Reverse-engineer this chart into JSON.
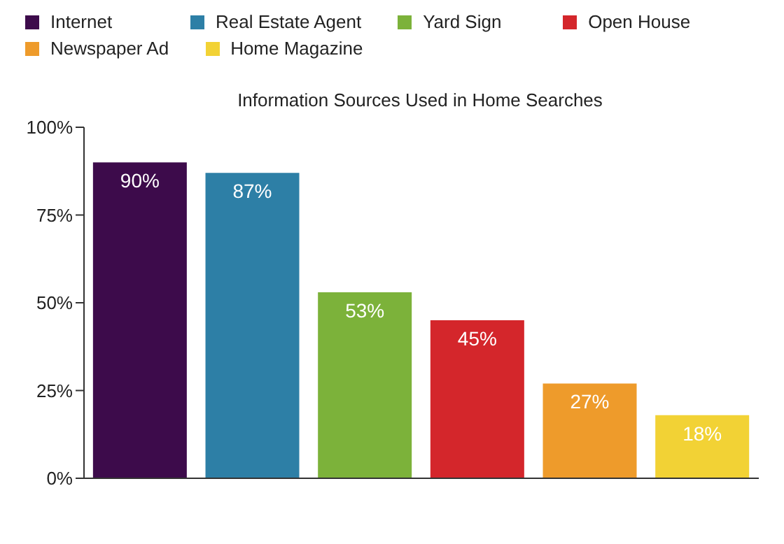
{
  "chart_data": {
    "type": "bar",
    "title": "Information Sources Used in Home Searches",
    "categories": [
      null,
      null,
      null,
      null,
      null,
      null
    ],
    "stacked": true,
    "series": [
      {
        "name": "Internet",
        "color": "#3d0b4b",
        "values": [
          90,
          null,
          null,
          null,
          null,
          null
        ],
        "value_labels": [
          "90%",
          null,
          null,
          null,
          null,
          null
        ]
      },
      {
        "name": "Real Estate Agent",
        "color": "#2d7fa6",
        "values": [
          null,
          87,
          null,
          null,
          null,
          null
        ],
        "value_labels": [
          null,
          "87%",
          null,
          null,
          null,
          null
        ]
      },
      {
        "name": "Yard Sign",
        "color": "#7cb23a",
        "values": [
          null,
          null,
          53,
          null,
          null,
          null
        ],
        "value_labels": [
          null,
          null,
          "53%",
          null,
          null,
          null
        ]
      },
      {
        "name": "Open House",
        "color": "#d4262b",
        "values": [
          null,
          null,
          null,
          45,
          null,
          null
        ],
        "value_labels": [
          null,
          null,
          null,
          "45%",
          null,
          null
        ]
      },
      {
        "name": "Newspaper Ad",
        "color": "#ee9b2b",
        "values": [
          null,
          null,
          null,
          null,
          27,
          null
        ],
        "value_labels": [
          null,
          null,
          null,
          null,
          "27%",
          null
        ]
      },
      {
        "name": "Home Magazine",
        "color": "#f2d235",
        "values": [
          null,
          null,
          null,
          null,
          null,
          18
        ],
        "value_labels": [
          null,
          null,
          null,
          null,
          null,
          "18%"
        ]
      }
    ],
    "ylim": [
      0,
      100
    ],
    "yticks": [
      {
        "value": 0,
        "label": "0%"
      },
      {
        "value": 25,
        "label": "25%"
      },
      {
        "value": 50,
        "label": "50%"
      },
      {
        "value": 75,
        "label": "75%"
      },
      {
        "value": 100,
        "label": "100%"
      }
    ],
    "grid": false,
    "legend": "top left"
  }
}
